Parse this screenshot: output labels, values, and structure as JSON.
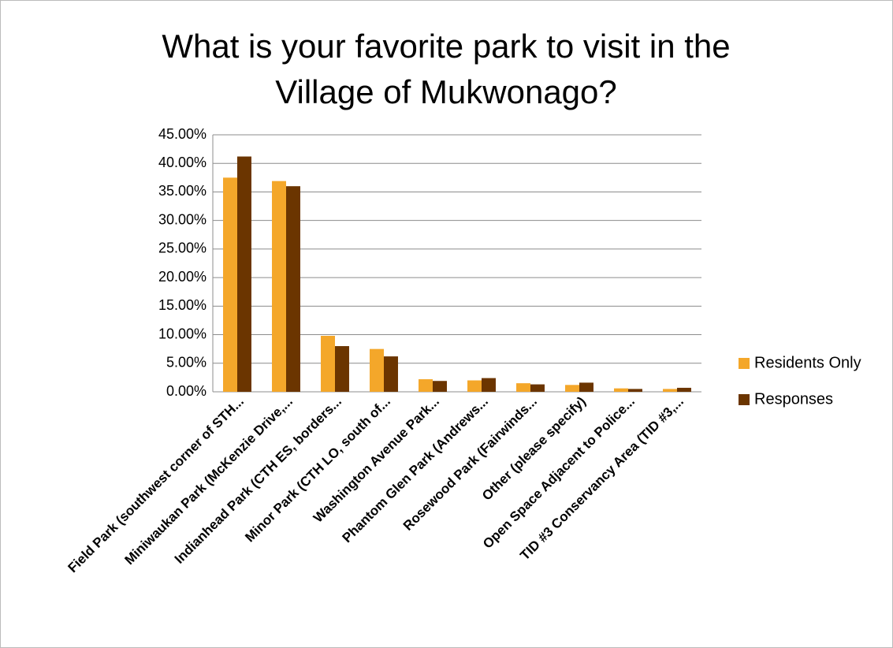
{
  "chart_data": {
    "type": "bar",
    "title": "What is your favorite park to visit in the Village of Mukwonago?",
    "categories": [
      "Field Park (southwest corner of STH...",
      "Miniwaukan Park (McKenzie Drive,...",
      "Indianhead Park (CTH ES, borders...",
      "Minor Park (CTH LO, south of...",
      "Washington Avenue Park...",
      "Phantom Glen Park (Andrews...",
      "Rosewood Park (Fairwinds...",
      "Other (please specify)",
      "Open Space Adjacent to Police...",
      "TID #3 Conservancy Area (TID #3,..."
    ],
    "series": [
      {
        "name": "Residents Only",
        "color": "#f4a72a",
        "values": [
          37.5,
          36.9,
          9.8,
          7.5,
          2.2,
          2.0,
          1.5,
          1.2,
          0.6,
          0.5
        ]
      },
      {
        "name": "Responses",
        "color": "#6b3500",
        "values": [
          41.2,
          36.0,
          8.0,
          6.2,
          1.9,
          2.4,
          1.3,
          1.6,
          0.5,
          0.7
        ]
      }
    ],
    "ylim": [
      0,
      45
    ],
    "yticks": [
      {
        "value": 0,
        "label": "0.00%"
      },
      {
        "value": 5,
        "label": "5.00%"
      },
      {
        "value": 10,
        "label": "10.00%"
      },
      {
        "value": 15,
        "label": "15.00%"
      },
      {
        "value": 20,
        "label": "20.00%"
      },
      {
        "value": 25,
        "label": "25.00%"
      },
      {
        "value": 30,
        "label": "30.00%"
      },
      {
        "value": 35,
        "label": "35.00%"
      },
      {
        "value": 40,
        "label": "40.00%"
      },
      {
        "value": 45,
        "label": "45.00%"
      }
    ],
    "grid": true,
    "legend": "right"
  }
}
